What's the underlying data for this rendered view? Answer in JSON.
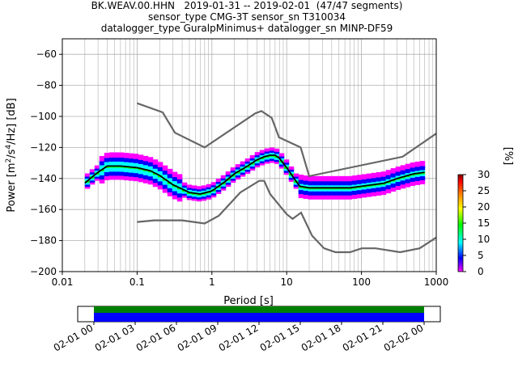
{
  "title_lines": [
    "BK.WEAV.00.HHN   2019-01-31 -- 2019-02-01  (47/47 segments)",
    "sensor_type CMG-3T sensor_sn T310034",
    "datalogger_type GuralpMinimus+ datalogger_sn MINP-DF59"
  ],
  "chart_data": {
    "type": "heatmap",
    "xlabel": "Period [s]",
    "ylabel_main": "Power [m",
    "ylabel_sup1": "2",
    "ylabel_mid": "/s",
    "ylabel_sup2": "4",
    "ylabel_end": "/Hz] [dB]",
    "x_scale": "log",
    "xlim": [
      0.01,
      1000
    ],
    "ylim": [
      -200,
      -50
    ],
    "x_ticks": [
      0.01,
      0.1,
      1,
      10,
      100,
      1000
    ],
    "x_tick_labels": [
      "0.01",
      "0.1",
      "1",
      "10",
      "100",
      "1000"
    ],
    "y_ticks": [
      -200,
      -180,
      -160,
      -140,
      -120,
      -100,
      -80,
      -60
    ],
    "y_tick_labels": [
      "−200",
      "−180",
      "−160",
      "−140",
      "−120",
      "−100",
      "−80",
      "−60"
    ],
    "grid": true,
    "colorbar": {
      "label": "[%]",
      "range": [
        0,
        30
      ],
      "ticks": [
        0,
        5,
        10,
        15,
        20,
        25,
        30
      ],
      "tick_labels": [
        "0",
        "5",
        "10",
        "15",
        "20",
        "25",
        "30"
      ],
      "colors": [
        "#ff00ff",
        "#0000ff",
        "#00ffff",
        "#00ff00",
        "#ffff00",
        "#ff8000",
        "#ff0000",
        "#800000"
      ]
    },
    "mode_curve": {
      "x": [
        0.02,
        0.025,
        0.03,
        0.04,
        0.06,
        0.1,
        0.15,
        0.2,
        0.3,
        0.5,
        0.7,
        1.0,
        1.5,
        2.0,
        3.0,
        4.0,
        5.0,
        6.0,
        7.0,
        8.0,
        10,
        13,
        15,
        20,
        30,
        50,
        70,
        100,
        200,
        300,
        500,
        700
      ],
      "y": [
        -143,
        -139,
        -136,
        -132,
        -132,
        -133,
        -135,
        -138,
        -144,
        -149,
        -150,
        -148,
        -142,
        -137,
        -132,
        -128,
        -126,
        -125,
        -125,
        -127,
        -133,
        -141,
        -145,
        -146,
        -146,
        -146,
        -146,
        -145,
        -143,
        -140,
        -137,
        -136
      ]
    },
    "nlnm": {
      "x": [
        0.1,
        0.17,
        0.4,
        0.8,
        1.24,
        2.4,
        4.3,
        5.0,
        6.0,
        10,
        12,
        15.6,
        21.9,
        31.6,
        45,
        70,
        101,
        154,
        328,
        600,
        1000
      ],
      "y": [
        -168,
        -167,
        -167,
        -169,
        -164,
        -149,
        -141.5,
        -141.5,
        -150,
        -163,
        -166,
        -162,
        -177,
        -185,
        -187.5,
        -187.5,
        -185,
        -185,
        -187.5,
        -185,
        -178
      ]
    },
    "nhnm": {
      "x": [
        0.1,
        0.22,
        0.32,
        0.8,
        3.8,
        4.6,
        6.3,
        7.9,
        15.4,
        20,
        354.8,
        1000
      ],
      "y": [
        -91.5,
        -97.4,
        -110.5,
        -120,
        -98,
        -96.5,
        -101,
        -113.5,
        -120,
        -138.5,
        -126,
        -111
      ]
    },
    "time_axis": {
      "tick_labels": [
        "02-01 00",
        "02-01 03",
        "02-01 06",
        "02-01 09",
        "02-01 12",
        "02-01 15",
        "02-01 18",
        "02-01 21",
        "02-02 00"
      ],
      "coverage_fraction": 1.0
    }
  }
}
